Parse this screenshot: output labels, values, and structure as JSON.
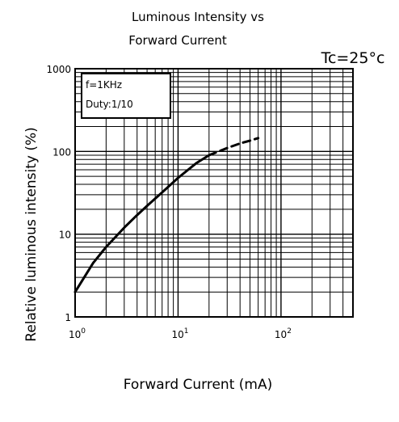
{
  "chart_data": {
    "type": "line",
    "title_line1": "Luminous Intensity vs",
    "title_line2": "Forward Current",
    "condition": "Tc=25°c",
    "xlabel": "Forward Current (mA)",
    "ylabel": "Relative luminous intensity (%)",
    "x_scale": "log",
    "y_scale": "log",
    "xlim": [
      1,
      500
    ],
    "ylim": [
      1,
      1000
    ],
    "x_ticks": [
      {
        "value": 1,
        "base": "10",
        "exp": "0"
      },
      {
        "value": 10,
        "base": "10",
        "exp": "1"
      },
      {
        "value": 100,
        "base": "10",
        "exp": "2"
      }
    ],
    "y_ticks": [
      {
        "value": 1,
        "label": "1"
      },
      {
        "value": 10,
        "label": "10"
      },
      {
        "value": 100,
        "label": "100"
      },
      {
        "value": 1000,
        "label": "1000"
      }
    ],
    "grid": true,
    "legend_box": {
      "line1": "f=1KHz",
      "line2": "Duty:1/10"
    },
    "series": [
      {
        "style": "solid",
        "x": [
          1,
          1.5,
          2,
          3,
          4,
          5,
          7,
          10,
          15,
          20
        ],
        "y": [
          2,
          4.5,
          7,
          12,
          17,
          22,
          32,
          48,
          72,
          90
        ]
      },
      {
        "style": "dashed",
        "x": [
          20,
          30,
          40,
          50,
          60
        ],
        "y": [
          90,
          110,
          125,
          135,
          145
        ]
      }
    ]
  }
}
